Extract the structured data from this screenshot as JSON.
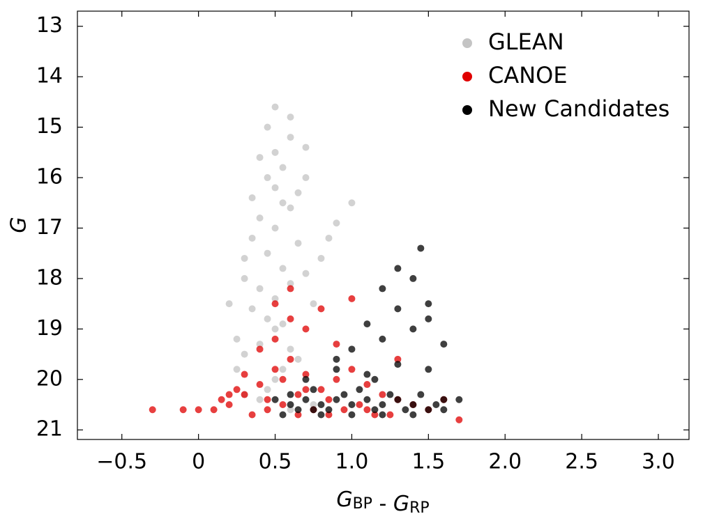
{
  "chart_data": {
    "type": "scatter",
    "ylabel": "G",
    "xlabel_parts": [
      {
        "text": "G",
        "sub": "BP"
      },
      {
        "text": " - "
      },
      {
        "text": "G",
        "sub": "RP"
      }
    ],
    "xlim": [
      -0.79,
      3.2
    ],
    "ylim": [
      21.19,
      12.7
    ],
    "xticks": [
      {
        "value": -0.5,
        "label": "−0.5"
      },
      0,
      0.5,
      {
        "value": 1,
        "label": "1.0"
      },
      1.5,
      {
        "value": 2,
        "label": "2.0"
      },
      2.5,
      {
        "value": 3,
        "label": "3.0"
      }
    ],
    "yticks": [
      13,
      14,
      15,
      16,
      17,
      18,
      19,
      20,
      21
    ],
    "legend": "upper right",
    "series": [
      {
        "name": "GLEAN",
        "color": "#c4c4c4",
        "x": [
          0.45,
          0.5,
          0.55,
          0.4,
          0.6,
          0.35,
          0.5,
          0.45,
          0.55,
          0.65,
          0.3,
          0.4,
          0.5,
          0.6,
          0.7,
          0.35,
          0.45,
          0.55,
          0.25,
          0.3,
          0.4,
          0.5,
          0.6,
          0.75,
          0.8,
          0.9,
          0.5,
          0.55,
          0.6,
          0.65,
          0.7,
          0.45,
          0.4,
          0.35,
          0.3,
          0.2,
          0.25,
          0.5,
          0.6,
          0.7,
          0.85,
          1.0,
          0.65,
          0.55,
          0.5,
          0.45,
          0.4,
          0.3,
          0.6,
          0.75
        ],
        "values": [
          16.0,
          16.2,
          16.5,
          16.8,
          16.6,
          17.2,
          17.0,
          17.5,
          17.8,
          17.3,
          18.0,
          18.2,
          18.4,
          18.1,
          17.9,
          18.6,
          18.8,
          18.9,
          19.2,
          19.5,
          19.3,
          19.0,
          19.4,
          18.5,
          17.6,
          16.9,
          15.5,
          15.8,
          15.2,
          16.3,
          16.0,
          15.0,
          15.6,
          16.4,
          17.6,
          18.5,
          19.8,
          14.6,
          14.8,
          15.4,
          17.2,
          16.5,
          19.6,
          19.8,
          20.0,
          20.2,
          20.4,
          20.3,
          20.6,
          20.5
        ]
      },
      {
        "name": "CANOE",
        "color": "#e00000",
        "x": [
          0.3,
          0.4,
          0.5,
          0.6,
          0.7,
          0.8,
          0.9,
          1.0,
          1.1,
          1.2,
          1.3,
          1.4,
          1.5,
          0.2,
          0.1,
          0.0,
          -0.1,
          -0.3,
          0.35,
          0.45,
          0.55,
          0.65,
          0.75,
          0.85,
          0.95,
          1.05,
          1.15,
          1.25,
          0.5,
          0.6,
          0.7,
          0.4,
          0.8,
          1.0,
          0.9,
          1.3,
          1.6,
          1.7,
          0.6,
          0.5,
          0.3,
          0.25,
          0.55,
          0.7,
          0.45,
          1.1,
          0.2,
          0.15,
          0.65,
          0.85
        ],
        "values": [
          20.3,
          20.1,
          19.8,
          19.6,
          19.9,
          20.2,
          20.0,
          19.8,
          20.1,
          20.3,
          20.4,
          20.5,
          20.6,
          20.5,
          20.6,
          20.6,
          20.6,
          20.6,
          20.7,
          20.6,
          20.5,
          20.3,
          20.6,
          20.7,
          20.6,
          20.5,
          20.7,
          20.7,
          19.2,
          18.8,
          19.0,
          19.4,
          18.6,
          18.4,
          19.3,
          19.6,
          20.4,
          20.8,
          18.2,
          18.5,
          19.9,
          20.2,
          20.0,
          20.2,
          20.4,
          20.6,
          20.3,
          20.4,
          20.7,
          20.4
        ]
      },
      {
        "name": "New Candidates",
        "color": "#000000",
        "x": [
          0.5,
          0.6,
          0.7,
          0.8,
          0.9,
          1.0,
          1.1,
          1.2,
          1.3,
          1.4,
          1.5,
          1.6,
          0.65,
          0.75,
          0.85,
          0.95,
          1.05,
          1.15,
          1.25,
          1.35,
          1.45,
          1.55,
          0.7,
          0.9,
          1.1,
          1.3,
          1.5,
          1.0,
          1.2,
          1.4,
          1.3,
          1.5,
          1.6,
          1.1,
          1.2,
          1.4,
          1.5,
          0.55,
          0.8,
          1.0,
          1.2,
          1.4,
          1.6,
          0.9,
          1.7,
          1.3,
          1.45,
          0.6,
          0.75,
          1.15
        ],
        "values": [
          20.4,
          20.3,
          20.4,
          20.5,
          20.4,
          20.5,
          20.4,
          20.5,
          20.4,
          20.5,
          20.6,
          20.6,
          20.6,
          20.2,
          20.6,
          20.3,
          20.2,
          20.6,
          20.3,
          20.6,
          20.3,
          20.5,
          20.0,
          19.8,
          19.9,
          19.7,
          19.8,
          19.4,
          19.2,
          19.0,
          18.6,
          18.8,
          19.3,
          18.9,
          18.2,
          18.0,
          18.5,
          20.7,
          20.7,
          20.7,
          20.7,
          20.7,
          20.4,
          19.6,
          20.4,
          17.8,
          17.4,
          20.5,
          20.6,
          20.0
        ]
      }
    ]
  }
}
